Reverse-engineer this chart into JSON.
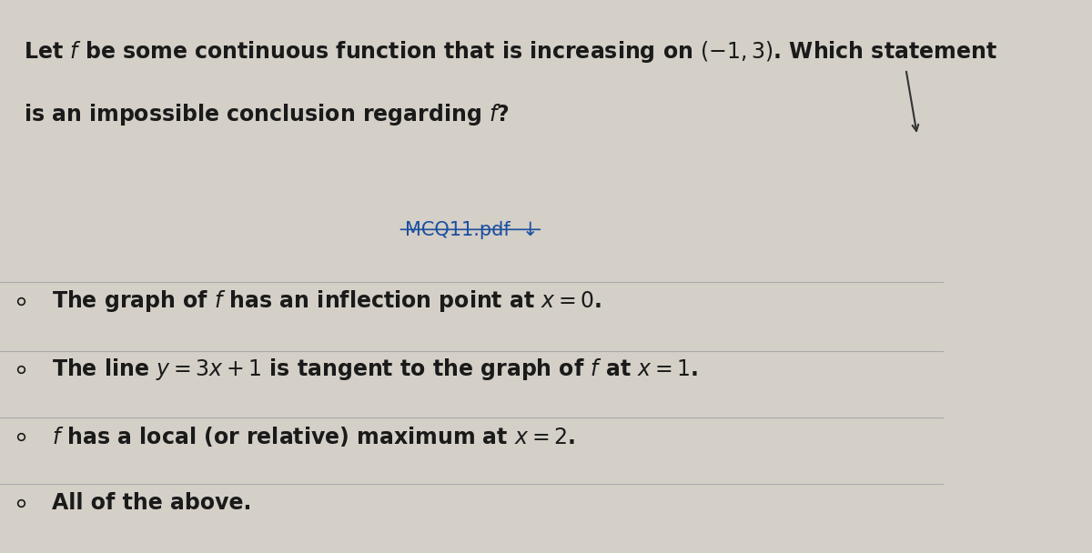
{
  "bg_color": "#d4cfc7",
  "fig_width": 12.0,
  "fig_height": 6.08,
  "question_line1": "Let $f$ be some continuous function that is increasing on $(-1, 3)$. Which statement",
  "question_line2": "is an impossible conclusion regarding $f$?",
  "link_text": "MCQ11.pdf  ↓",
  "link_color": "#1a4fa0",
  "options": [
    "The graph of $f$ has an inflection point at $x = 0$.",
    "The line $y = 3x + 1$ is tangent to the graph of $f$ at $x = 1$.",
    "$f$ has a local (or relative) maximum at $x = 2$.",
    "All of the above."
  ],
  "question_fontsize": 17,
  "option_fontsize": 17,
  "link_fontsize": 15,
  "text_color": "#1a1a1a",
  "circle_color": "#1a1a1a",
  "line_color": "#aaaaaa",
  "line_width": 0.8
}
